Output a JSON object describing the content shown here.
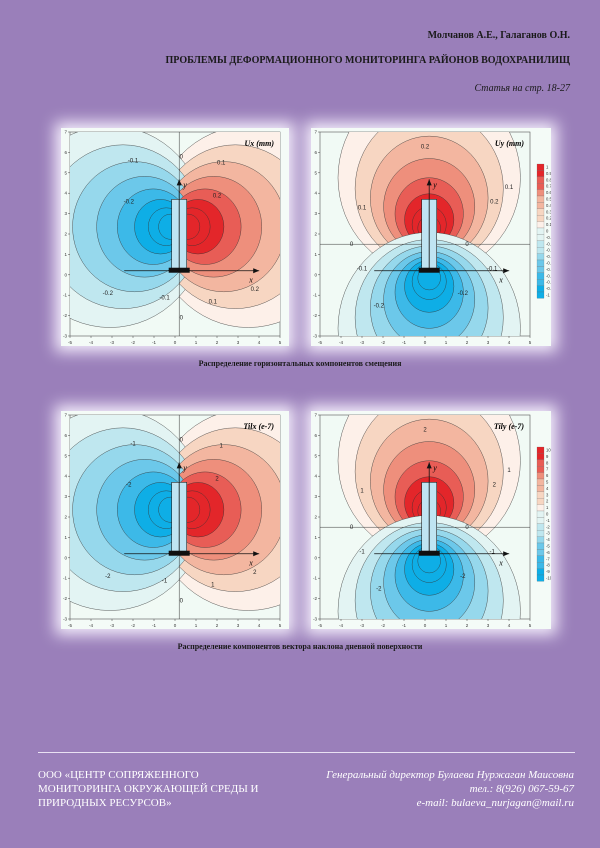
{
  "header": {
    "author": "Молчанов А.Е., Галаганов О.Н.",
    "title": "ПРОБЛЕМЫ ДЕФОРМАЦИОННОГО МОНИТОРИНГА РАЙОНОВ ВОДОХРАНИЛИЩ",
    "page_ref": "Статья на стр. 18-27"
  },
  "figures": {
    "row1_caption": "Распределение горизонтальных компонентов смещения",
    "row2_caption": "Распределение компонентов вектора наклона дневной поверхности",
    "panels": [
      {
        "label": "Ux (mm)",
        "mode": "x",
        "contours": [
          "-0.1",
          "-0.1",
          "-0.2",
          "-0.2",
          "0",
          "0",
          "0.1",
          "0.1",
          "0.2",
          "0.2"
        ]
      },
      {
        "label": "Uy (mm)",
        "mode": "y",
        "contours": [
          "0.2",
          "0.2",
          "0.1",
          "0.1",
          "0",
          "0",
          "-0.1",
          "-0.1",
          "-0.2",
          "-0.2"
        ],
        "colorbar": [
          "1",
          "0.9",
          "0.8",
          "0.7",
          "0.6",
          "0.5",
          "0.4",
          "0.3",
          "0.2",
          "0.1",
          "0",
          "-0.1",
          "-0.2",
          "-0.3",
          "-0.4",
          "-0.5",
          "-0.6",
          "-0.7",
          "-0.8",
          "-0.9",
          "-1"
        ]
      },
      {
        "label": "Tilx (e-7)",
        "mode": "x",
        "contours": [
          "-1",
          "-1",
          "-2",
          "-2",
          "0",
          "0",
          "1",
          "1",
          "2",
          "2"
        ]
      },
      {
        "label": "Tily (e-7)",
        "mode": "y",
        "contours": [
          "2",
          "2",
          "1",
          "1",
          "0",
          "0",
          "-1",
          "-1",
          "-2",
          "-2"
        ],
        "colorbar": [
          "10",
          "9",
          "8",
          "7",
          "6",
          "5",
          "4",
          "3",
          "2",
          "1",
          "0",
          "-1",
          "-2",
          "-3",
          "-4",
          "-5",
          "-6",
          "-7",
          "-8",
          "-9",
          "-10"
        ]
      }
    ],
    "axis": {
      "x_label": "x",
      "y_label": "y",
      "x_ticks": [
        "-5",
        "-4",
        "-3",
        "-2",
        "-1",
        "0",
        "1",
        "2",
        "3",
        "4",
        "5"
      ],
      "y_ticks": [
        "7",
        "6",
        "5",
        "4",
        "3",
        "2",
        "1",
        "0",
        "-1",
        "-2",
        "-3"
      ]
    }
  },
  "footer": {
    "org_line1": "ООО «ЦЕНТР СОПРЯЖЕННОГО",
    "org_line2": "МОНИТОРИНГА ОКРУЖАЮЩЕЙ СРЕДЫ И",
    "org_line3": "ПРИРОДНЫХ РЕСУРСОВ»",
    "director": "Генеральный директор Булаева Нуржаган Маисовна",
    "phone": "тел.: 8(926) 067-59-67",
    "email": "e-mail: bulaeva_nurjagan@mail.ru"
  }
}
